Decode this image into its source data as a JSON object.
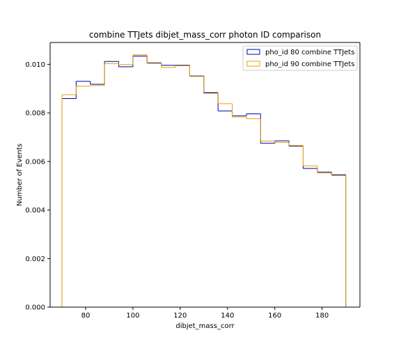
{
  "chart_data": {
    "type": "histogram-step",
    "title": "combine TTJets dibjet_mass_corr photon ID comparison",
    "xlabel": "dibjet_mass_corr",
    "ylabel": "Number of Events",
    "xlim": [
      65,
      196
    ],
    "ylim": [
      0,
      0.0109
    ],
    "xticks": [
      80,
      100,
      120,
      140,
      160,
      180
    ],
    "yticks": [
      0.0,
      0.002,
      0.004,
      0.006,
      0.008,
      0.01
    ],
    "xtick_labels": [
      "80",
      "100",
      "120",
      "140",
      "160",
      "180"
    ],
    "ytick_labels": [
      "0.000",
      "0.002",
      "0.004",
      "0.006",
      "0.008",
      "0.010"
    ],
    "bin_edges": [
      70,
      76,
      82,
      88,
      94,
      100,
      106,
      112,
      118,
      124,
      130,
      136,
      142,
      148,
      154,
      160,
      166,
      172,
      178,
      184,
      190
    ],
    "legend_position": "upper right",
    "grid": false,
    "series": [
      {
        "name": "pho_id 80 combine TTJets",
        "color": "#0000aa",
        "values": [
          0.00859,
          0.0093,
          0.00918,
          0.01012,
          0.0099,
          0.01034,
          0.01006,
          0.00996,
          0.00996,
          0.00952,
          0.00882,
          0.00808,
          0.00788,
          0.00796,
          0.00675,
          0.00685,
          0.00663,
          0.00571,
          0.00556,
          0.00545
        ]
      },
      {
        "name": "pho_id 90 combine TTJets",
        "color": "#e6a000",
        "values": [
          0.00875,
          0.0091,
          0.00913,
          0.01003,
          0.00999,
          0.01039,
          0.01004,
          0.00987,
          0.00994,
          0.0095,
          0.00885,
          0.00838,
          0.00783,
          0.00776,
          0.00684,
          0.00678,
          0.00666,
          0.00582,
          0.00553,
          0.00542
        ]
      }
    ]
  }
}
